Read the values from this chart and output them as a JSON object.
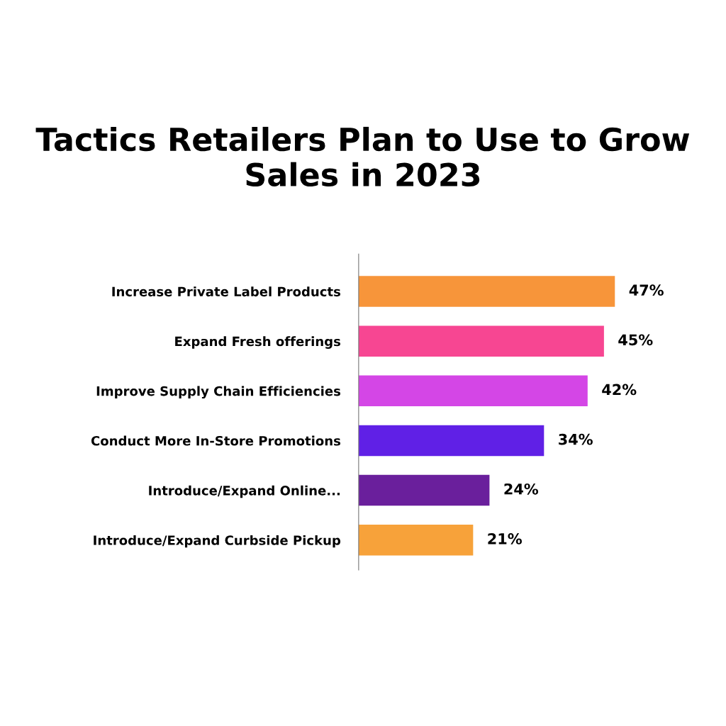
{
  "chart_data": {
    "type": "bar",
    "orientation": "horizontal",
    "title": "Tactics Retailers Plan to Use to Grow Sales in 2023",
    "categories": [
      "Increase Private Label Products",
      "Expand Fresh offerings",
      "Improve Supply Chain Efficiencies",
      "Conduct More In-Store Promotions",
      "Introduce/Expand Online...",
      "Introduce/Expand Curbside Pickup"
    ],
    "values": [
      47,
      45,
      42,
      34,
      24,
      21
    ],
    "value_labels": [
      "47%",
      "45%",
      "42%",
      "34%",
      "24%",
      "21%"
    ],
    "colors": [
      "#f7953a",
      "#f74692",
      "#d446e6",
      "#6020e6",
      "#6a1f9c",
      "#f7a23a"
    ],
    "tick_labels": "y",
    "grid": false,
    "legend": false
  }
}
